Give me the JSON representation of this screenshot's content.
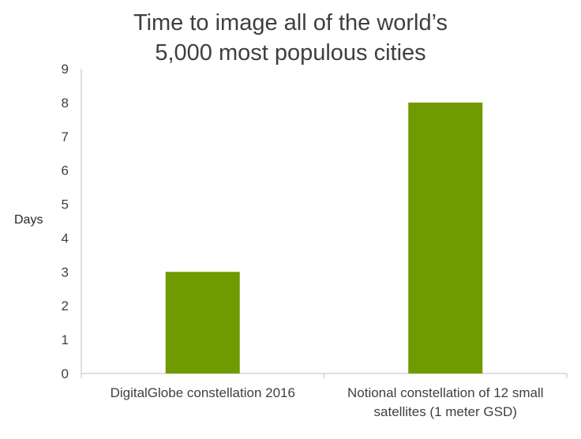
{
  "chart_data": {
    "type": "bar",
    "title": [
      "Time to image all of the world’s",
      "5,000 most populous cities"
    ],
    "ylabel": "Days",
    "xlabel": "",
    "ylim": [
      0,
      9
    ],
    "yticks": [
      0,
      1,
      2,
      3,
      4,
      5,
      6,
      7,
      8,
      9
    ],
    "grid": false,
    "legend": "none",
    "categories": [
      [
        "DigitalGlobe constellation 2016"
      ],
      [
        "Notional constellation of 12 small",
        "satellites (1 meter GSD)"
      ]
    ],
    "values": [
      3,
      8
    ],
    "bar_color": "#6f9a00",
    "axis_color": "#bfbfbf"
  }
}
